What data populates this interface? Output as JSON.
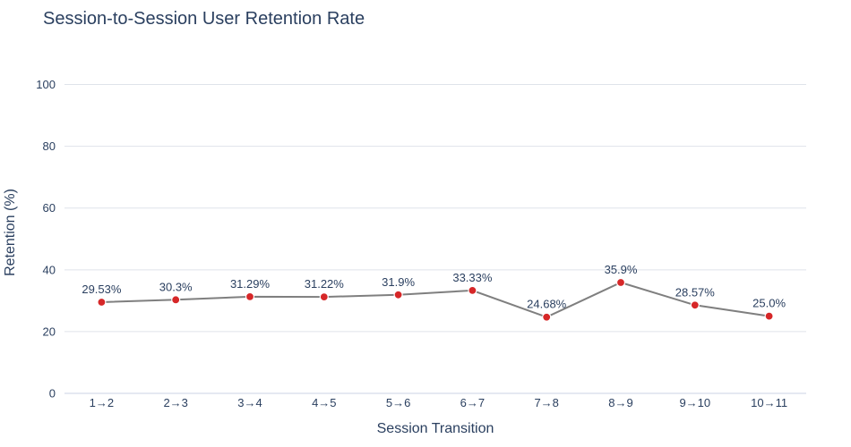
{
  "chart_data": {
    "type": "line",
    "title": "Session-to-Session User Retention Rate",
    "xlabel": "Session Transition",
    "ylabel": "Retention (%)",
    "categories": [
      "1→2",
      "2→3",
      "3→4",
      "4→5",
      "5→6",
      "6→7",
      "7→8",
      "8→9",
      "9→10",
      "10→11"
    ],
    "values": [
      29.53,
      30.3,
      31.29,
      31.22,
      31.9,
      33.33,
      24.68,
      35.9,
      28.57,
      25.0
    ],
    "data_labels": [
      "29.53%",
      "30.3%",
      "31.29%",
      "31.22%",
      "31.9%",
      "33.33%",
      "24.68%",
      "35.9%",
      "28.57%",
      "25.0%"
    ],
    "ylim": [
      0,
      110
    ],
    "yticks": [
      0,
      20,
      40,
      60,
      80,
      100
    ],
    "grid": true,
    "line_color": "#7f7f7f",
    "marker_color": "#d62728"
  }
}
